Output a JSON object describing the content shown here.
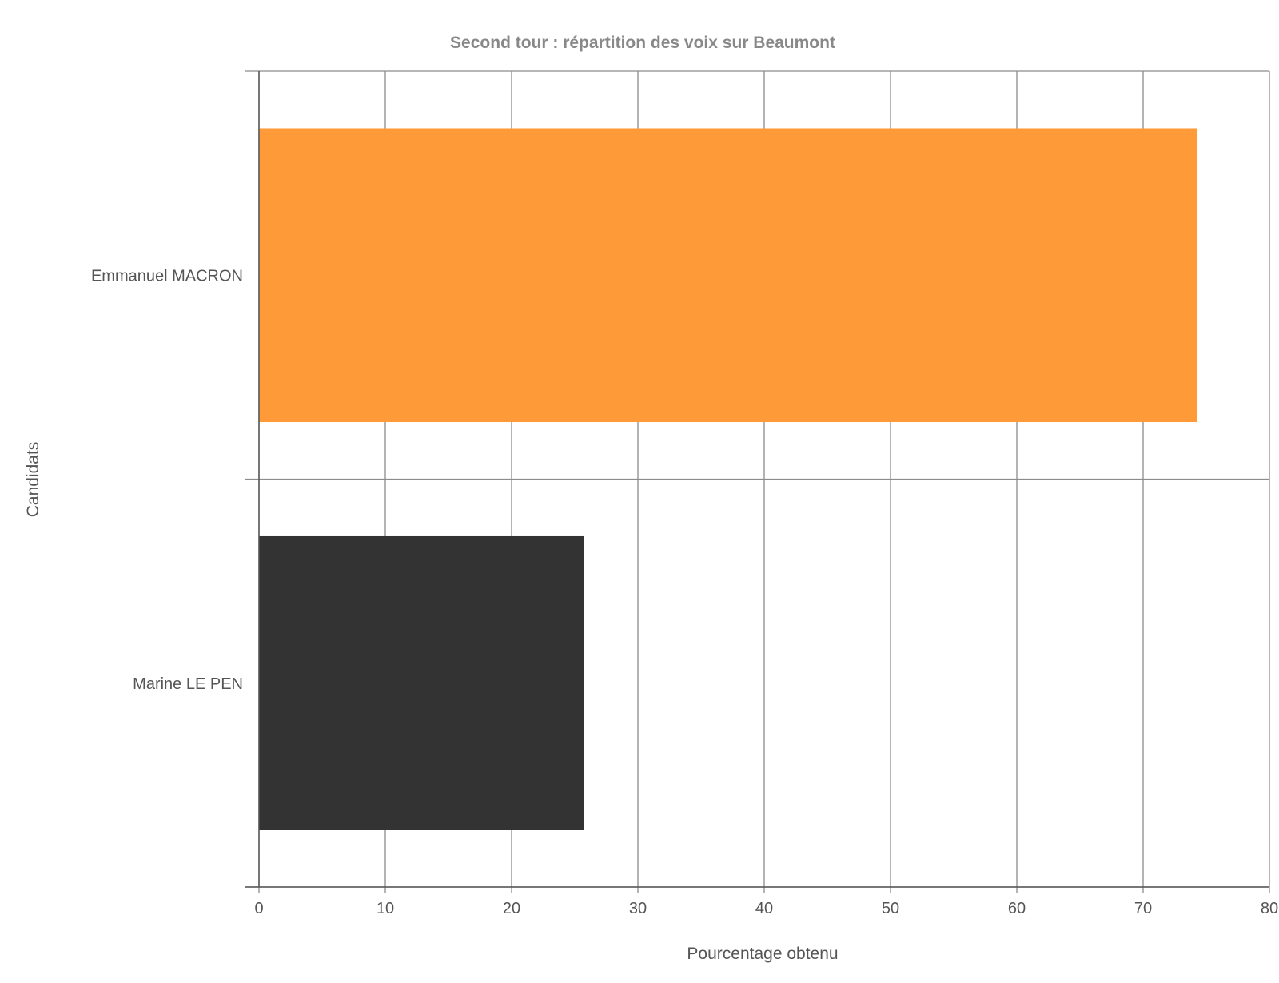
{
  "chart_data": {
    "type": "bar",
    "orientation": "horizontal",
    "title": "Second tour : répartition des voix sur Beaumont",
    "xlabel": "Pourcentage obtenu",
    "ylabel": "Candidats",
    "xlim": [
      0,
      80
    ],
    "xticks": [
      0,
      10,
      20,
      30,
      40,
      50,
      60,
      70,
      80
    ],
    "grid": true,
    "categories": [
      "Emmanuel MACRON",
      "Marine LE PEN"
    ],
    "values": [
      74.3,
      25.7
    ],
    "colors": [
      "#ff9a38",
      "#333333"
    ]
  }
}
